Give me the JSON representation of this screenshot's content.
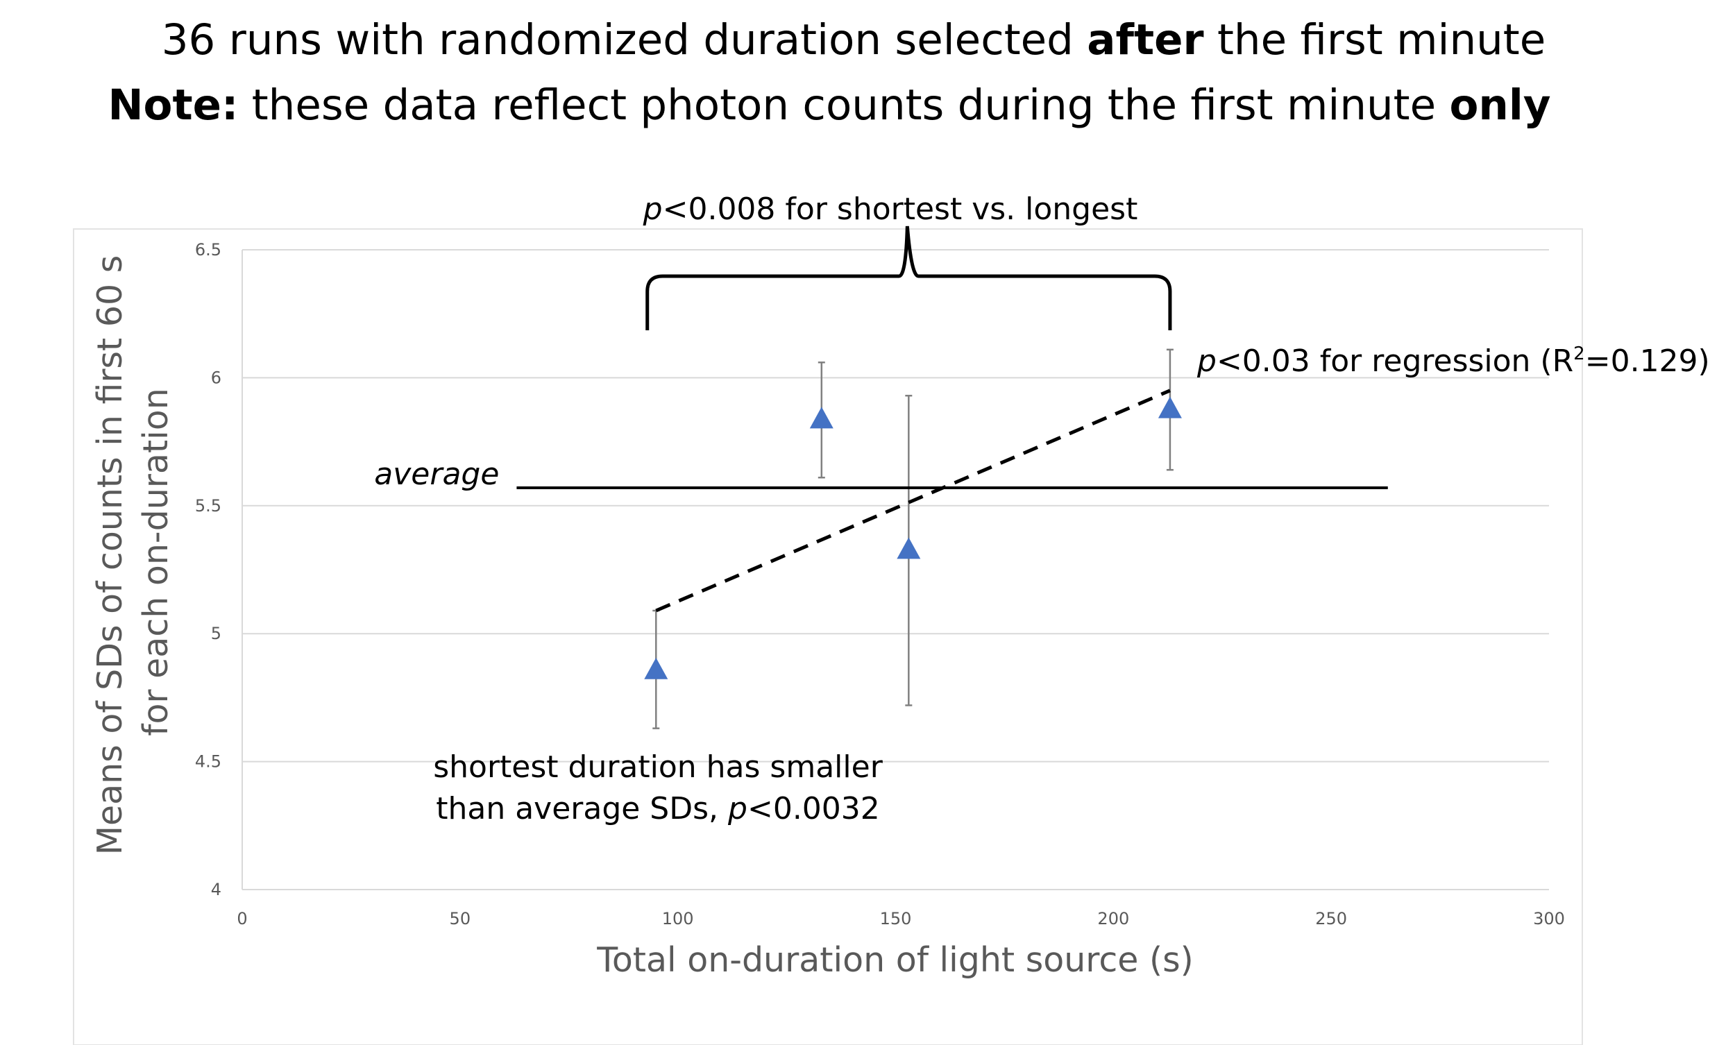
{
  "header": {
    "line1": {
      "part1": "36 runs with randomized duration selected ",
      "bold": "after",
      "part2": " the first minute"
    },
    "line2": {
      "bold": "Note:",
      "part1": " these data reflect photon counts during the first minute ",
      "bold2": "only"
    }
  },
  "chart_data": {
    "type": "scatter",
    "xlabel": "Total on-duration of light source (s)",
    "ylabel_lines": [
      "Means of SDs of counts in first 60 s",
      "for each on-duration"
    ],
    "xlim": [
      0,
      300
    ],
    "ylim": [
      4,
      6.5
    ],
    "x_ticks": [
      "0",
      "50",
      "100",
      "150",
      "200",
      "250",
      "300"
    ],
    "y_ticks": [
      "4",
      "4.5",
      "5",
      "5.5",
      "6",
      "6.5"
    ],
    "grid": true,
    "marker": "triangle",
    "marker_color": "#4472C4",
    "points": [
      {
        "x": 95,
        "y": 4.86,
        "err_low": 4.63,
        "err_high": 5.09
      },
      {
        "x": 133,
        "y": 5.84,
        "err_low": 5.61,
        "err_high": 6.06
      },
      {
        "x": 153,
        "y": 5.33,
        "err_low": 4.72,
        "err_high": 5.93
      },
      {
        "x": 213,
        "y": 5.88,
        "err_low": 5.64,
        "err_high": 6.11
      }
    ],
    "average_line": {
      "label": "average",
      "y": 5.57,
      "x_start": 63,
      "x_end": 263
    },
    "regression_line": {
      "x1": 95,
      "y1": 5.09,
      "x2": 213,
      "y2": 5.95
    },
    "annotations": {
      "bracket": {
        "p": "p",
        "rest": "<0.008 for shortest vs. longest",
        "x_start": 93,
        "x_end": 213
      },
      "regression": {
        "p": "p",
        "mid": "<0.03 for regression (R",
        "sup": "2",
        "end": "=0.129)"
      },
      "shortest": {
        "line1": "shortest duration has smaller",
        "line2_pre": "than average SDs, ",
        "p": "p",
        "line2_post": "<0.0032"
      }
    }
  }
}
